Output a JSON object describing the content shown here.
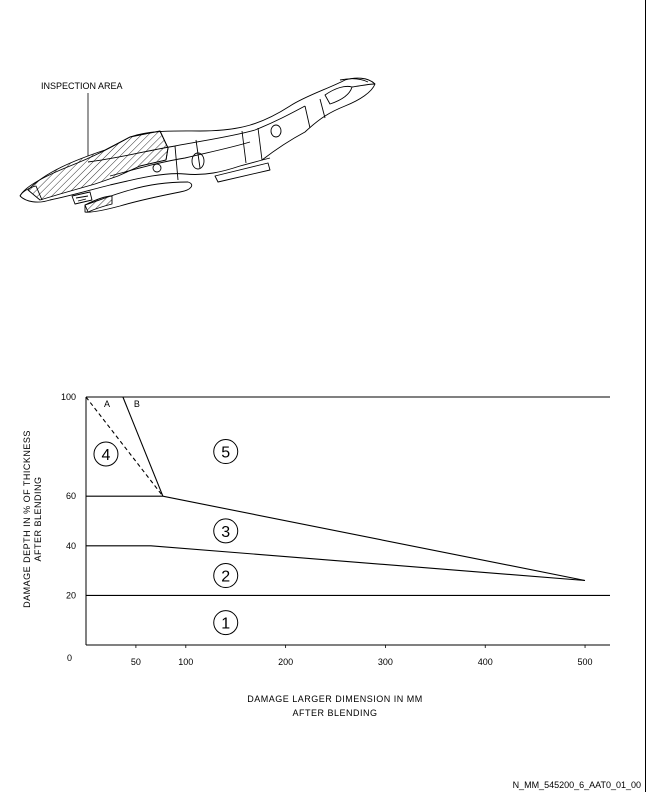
{
  "illustration": {
    "callout_label": "INSPECTION AREA",
    "icon": "fuselage-section-icon"
  },
  "chart": {
    "x_title_line1": "DAMAGE LARGER DIMENSION IN MM",
    "x_title_line2": "AFTER BLENDING",
    "y_title_line1": "DAMAGE DEPTH IN % OF THICKNESS",
    "y_title_line2": "AFTER BLENDING",
    "origin_label": "0",
    "x_ticks": [
      "50",
      "100",
      "200",
      "300",
      "400",
      "500"
    ],
    "y_ticks": [
      "20",
      "40",
      "60",
      "100"
    ],
    "zones": [
      "1",
      "2",
      "3",
      "4",
      "5"
    ],
    "line_labels": [
      "A",
      "B"
    ]
  },
  "chart_data": {
    "type": "line",
    "title": "",
    "xlabel": "DAMAGE LARGER DIMENSION IN MM AFTER BLENDING",
    "ylabel": "DAMAGE DEPTH IN % OF THICKNESS AFTER BLENDING",
    "xlim": [
      0,
      525
    ],
    "ylim": [
      0,
      100
    ],
    "x_ticks": [
      50,
      100,
      200,
      300,
      400,
      500
    ],
    "y_ticks": [
      20,
      40,
      60,
      100
    ],
    "grid": false,
    "series": [
      {
        "name": "A",
        "style": "dashed",
        "x": [
          0,
          77
        ],
        "y": [
          100,
          60
        ]
      },
      {
        "name": "B",
        "style": "solid",
        "x": [
          37,
          77
        ],
        "y": [
          100,
          60
        ]
      },
      {
        "style": "solid",
        "x": [
          0,
          77,
          500
        ],
        "y": [
          60,
          60,
          26
        ]
      },
      {
        "style": "solid",
        "x": [
          0,
          65,
          500
        ],
        "y": [
          40,
          40,
          26
        ]
      },
      {
        "style": "solid",
        "x": [
          0,
          525
        ],
        "y": [
          20,
          20
        ]
      },
      {
        "style": "solid",
        "x": [
          0,
          525
        ],
        "y": [
          100,
          100
        ]
      }
    ],
    "zones": [
      {
        "label": "1",
        "x": 140,
        "y": 9
      },
      {
        "label": "2",
        "x": 140,
        "y": 28
      },
      {
        "label": "3",
        "x": 140,
        "y": 46
      },
      {
        "label": "4",
        "x": 20,
        "y": 77
      },
      {
        "label": "5",
        "x": 140,
        "y": 78
      }
    ]
  },
  "footer": {
    "reference": "N_MM_545200_6_AAT0_01_00"
  }
}
